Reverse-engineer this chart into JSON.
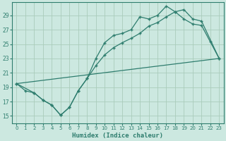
{
  "xlabel": "Humidex (Indice chaleur)",
  "bg_color": "#cce8e0",
  "grid_color": "#aaccbb",
  "line_color": "#2e7d6e",
  "xlim": [
    -0.5,
    23.5
  ],
  "ylim": [
    14.0,
    30.8
  ],
  "xticks": [
    0,
    1,
    2,
    3,
    4,
    5,
    6,
    7,
    8,
    9,
    10,
    11,
    12,
    13,
    14,
    15,
    16,
    17,
    18,
    19,
    20,
    21,
    22,
    23
  ],
  "yticks": [
    15,
    17,
    19,
    21,
    23,
    25,
    27,
    29
  ],
  "line1_x": [
    0,
    1,
    2,
    3,
    4,
    5,
    6,
    7,
    8,
    9,
    10,
    11,
    12,
    13,
    14,
    15,
    16,
    17,
    18,
    19,
    20,
    21,
    22,
    23
  ],
  "line1_y": [
    19.5,
    18.5,
    18.2,
    17.2,
    16.5,
    15.1,
    16.2,
    18.5,
    20.2,
    23.0,
    25.2,
    26.2,
    26.5,
    27.0,
    28.8,
    28.5,
    29.0,
    30.3,
    29.5,
    28.5,
    27.8,
    27.6,
    25.3,
    23.0
  ],
  "line2_x": [
    0,
    2,
    3,
    4,
    5,
    6,
    7,
    8,
    9,
    10,
    11,
    12,
    13,
    14,
    15,
    16,
    17,
    18,
    19,
    20,
    21,
    23
  ],
  "line2_y": [
    19.5,
    18.2,
    17.2,
    16.5,
    15.1,
    16.2,
    18.5,
    20.2,
    22.0,
    23.5,
    24.5,
    25.2,
    25.8,
    26.5,
    27.5,
    28.0,
    28.8,
    29.5,
    29.8,
    28.5,
    28.2,
    23.0
  ],
  "line3_x": [
    0,
    23
  ],
  "line3_y": [
    19.5,
    23.0
  ]
}
